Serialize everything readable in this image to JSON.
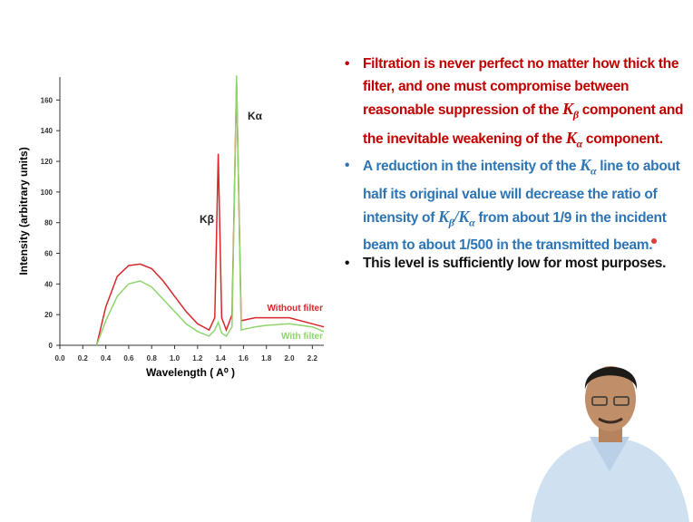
{
  "chart_data": {
    "type": "line",
    "xlabel": "Wavelength ( A⁰ )",
    "ylabel": "Intensity (arbitrary units)",
    "annotations": [
      "Kβ",
      "Kα"
    ],
    "x": [
      0.32,
      0.4,
      0.5,
      0.6,
      0.7,
      0.8,
      0.9,
      1.0,
      1.1,
      1.2,
      1.3,
      1.35,
      1.38,
      1.41,
      1.45,
      1.5,
      1.54,
      1.58,
      1.7,
      1.8,
      2.0,
      2.2,
      2.3
    ],
    "series": [
      {
        "name": "Without filter",
        "color": "#d9262c",
        "values": [
          0,
          25,
          45,
          52,
          53,
          50,
          42,
          32,
          22,
          14,
          10,
          18,
          125,
          18,
          10,
          20,
          172,
          16,
          18,
          18,
          18,
          14,
          12
        ]
      },
      {
        "name": "With filter",
        "color": "#8fd46e",
        "values": [
          0,
          16,
          32,
          40,
          42,
          38,
          30,
          22,
          14,
          9,
          6,
          10,
          15,
          8,
          6,
          12,
          176,
          10,
          12,
          13,
          14,
          12,
          9
        ]
      }
    ],
    "xlim": [
      0,
      2.3
    ],
    "ylim": [
      0,
      175
    ],
    "xticks": [
      {
        "value": 0,
        "label": "0.0"
      },
      0.2,
      0.4,
      0.6,
      0.8,
      {
        "value": 1,
        "label": "1.0"
      },
      1.2,
      1.4,
      1.6,
      1.8,
      {
        "value": 2,
        "label": "2.0"
      },
      2.2
    ],
    "yticks": [
      0,
      20,
      40,
      60,
      80,
      100,
      120,
      140,
      160
    ]
  },
  "bullets": [
    {
      "marker": "•",
      "parts": [
        "Filtration is never perfect no matter how thick the filter, and one must compromise between reasonable suppression of the ",
        "K",
        "β",
        " component and the inevitable weakening of the ",
        "K",
        "α",
        " component."
      ]
    },
    {
      "marker": "•",
      "parts": [
        "A reduction in the intensity of the ",
        "K",
        "α",
        " line to about half its original value will decrease the ratio of intensity of ",
        "K",
        "β",
        "/",
        "K",
        "α",
        " from about 1/9 in the incident beam to about 1/500 in the transmitted beam."
      ]
    },
    {
      "marker": "•",
      "parts": [
        "This level is sufficiently low for most purposes."
      ]
    }
  ]
}
